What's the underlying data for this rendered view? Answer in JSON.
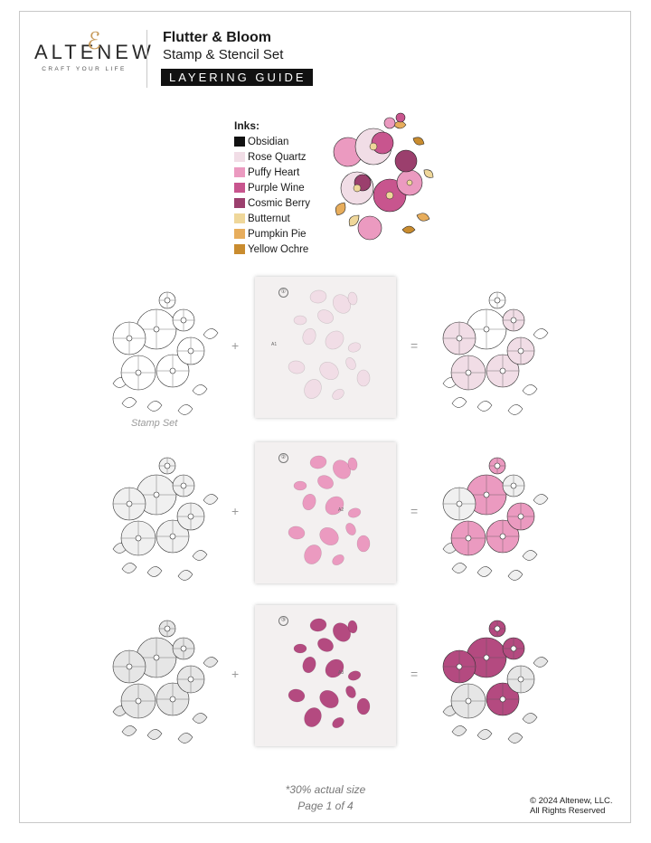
{
  "brand": {
    "wordmark": "ALTENEW",
    "amp": "ℰ",
    "tagline": "CRAFT YOUR LIFE"
  },
  "header": {
    "title": "Flutter & Bloom",
    "subtitle": "Stamp & Stencil Set",
    "badge": "LAYERING GUIDE"
  },
  "inks": {
    "heading": "Inks:",
    "items": [
      {
        "name": "Obsidian",
        "color": "#111111"
      },
      {
        "name": "Rose Quartz",
        "color": "#f1dde6"
      },
      {
        "name": "Puffy Heart",
        "color": "#eb9ac0"
      },
      {
        "name": "Purple Wine",
        "color": "#c8558e"
      },
      {
        "name": "Cosmic Berry",
        "color": "#9b3f6d"
      },
      {
        "name": "Butternut",
        "color": "#efd79a"
      },
      {
        "name": "Pumpkin Pie",
        "color": "#e7ad5c"
      },
      {
        "name": "Yellow Ochre",
        "color": "#c98c2f"
      }
    ]
  },
  "steps": [
    {
      "stencil_number": "①",
      "stencil_code": "A1",
      "plus": "+",
      "equals": "=",
      "petal_color": "#f1dde6"
    },
    {
      "stencil_number": "②",
      "stencil_code": "A2",
      "plus": "+",
      "equals": "=",
      "petal_color": "#eb9ac0"
    },
    {
      "stencil_number": "③",
      "stencil_code": "A3",
      "plus": "+",
      "equals": "=",
      "petal_color": "#b44a80"
    }
  ],
  "stamp_caption": "Stamp Set",
  "footer": {
    "size_note": "*30% actual size",
    "page": "Page 1 of 4",
    "copyright_1": "© 2024 Altenew, LLC.",
    "copyright_2": "All Rights Reserved"
  }
}
